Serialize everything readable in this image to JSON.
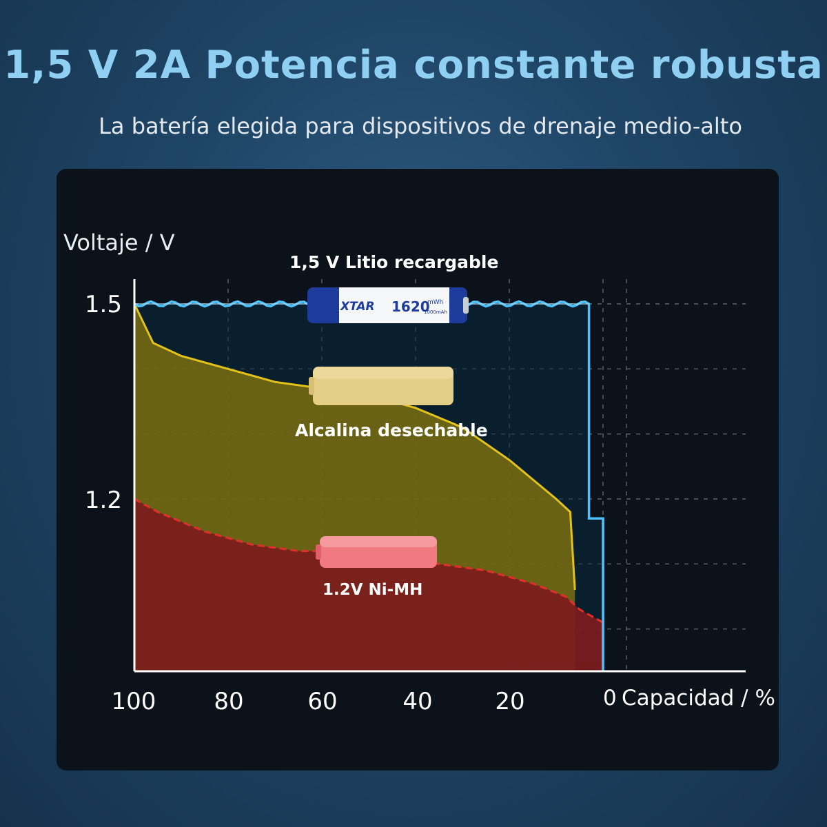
{
  "header": {
    "title": "1,5 V 2A Potencia constante robusta",
    "subtitle": "La batería elegida para dispositivos de drenaje medio-alto"
  },
  "colors": {
    "background": "#1f4566",
    "title": "#8fd0f2",
    "lithium": "#4ec3ff",
    "alkaline": "#e3c21a",
    "nimh": "#e0302a"
  },
  "icons": {
    "lithium_battery": "battery-icon",
    "alkaline_battery": "battery-icon",
    "nimh_battery": "battery-icon"
  },
  "battery_print": {
    "brand": "XTAR",
    "capacity": "1620",
    "unit": "mWh",
    "sub": "1000mAh"
  },
  "chart_data": {
    "type": "area",
    "ylabel": "Voltaje / V",
    "xlabel": "Capacidad / %",
    "x_reversed": true,
    "x_ticks": [
      "100",
      "80",
      "60",
      "40",
      "20",
      "0"
    ],
    "y_ticks": [
      "1.5",
      "1.2"
    ],
    "xlim": [
      100,
      0
    ],
    "ylim": [
      0.95,
      1.5
    ],
    "grid": true,
    "series": [
      {
        "name": "1,5 V Litio recargable",
        "color": "#4ec3ff",
        "x": [
          100,
          90,
          80,
          70,
          60,
          50,
          40,
          30,
          20,
          10,
          3,
          3,
          0,
          0
        ],
        "y": [
          1.5,
          1.5,
          1.5,
          1.5,
          1.5,
          1.5,
          1.5,
          1.5,
          1.5,
          1.5,
          1.5,
          1.17,
          1.17,
          0.95
        ]
      },
      {
        "name": "Alcalina desechable",
        "color": "#e3c21a",
        "x": [
          100,
          96,
          90,
          80,
          70,
          60,
          50,
          40,
          30,
          20,
          10,
          7,
          6
        ],
        "y": [
          1.5,
          1.44,
          1.42,
          1.4,
          1.38,
          1.37,
          1.36,
          1.34,
          1.31,
          1.26,
          1.2,
          1.18,
          1.06
        ]
      },
      {
        "name": "1.2V Ni-MH",
        "color": "#e0302a",
        "x": [
          100,
          95,
          85,
          75,
          65,
          55,
          45,
          35,
          25,
          15,
          8,
          5,
          0
        ],
        "y": [
          1.2,
          1.18,
          1.15,
          1.13,
          1.12,
          1.12,
          1.11,
          1.1,
          1.09,
          1.07,
          1.05,
          1.03,
          1.01
        ]
      }
    ]
  }
}
